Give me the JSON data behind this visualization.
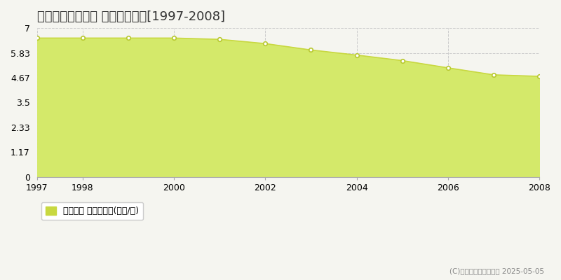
{
  "title": "宮城郡利府町加瀬 基準地価推移[1997-2008]",
  "years": [
    1997,
    1998,
    1999,
    2000,
    2001,
    2002,
    2003,
    2004,
    2005,
    2006,
    2007,
    2008
  ],
  "values": [
    6.53,
    6.53,
    6.53,
    6.53,
    6.47,
    6.27,
    5.97,
    5.73,
    5.47,
    5.13,
    4.8,
    4.73
  ],
  "ylim": [
    0,
    7
  ],
  "yticks": [
    0,
    1.17,
    2.33,
    3.5,
    4.67,
    5.83,
    7
  ],
  "ytick_labels": [
    "0",
    "1.17",
    "2.33",
    "3.5",
    "4.67",
    "5.83",
    "7"
  ],
  "xticks": [
    1997,
    1998,
    2000,
    2002,
    2004,
    2006,
    2008
  ],
  "line_color": "#c8d840",
  "fill_color": "#d4e96a",
  "marker_face": "#ffffff",
  "marker_edge": "#b8c830",
  "bg_color": "#f5f5f0",
  "plot_bg_color": "#f5f5f0",
  "grid_color": "#cccccc",
  "legend_label": "基準地価 平均坪単価(万円/坪)",
  "legend_color": "#c8d840",
  "copyright_text": "(C)土地価格ドットコム 2025-05-05",
  "title_fontsize": 13,
  "axis_fontsize": 9,
  "legend_fontsize": 9
}
